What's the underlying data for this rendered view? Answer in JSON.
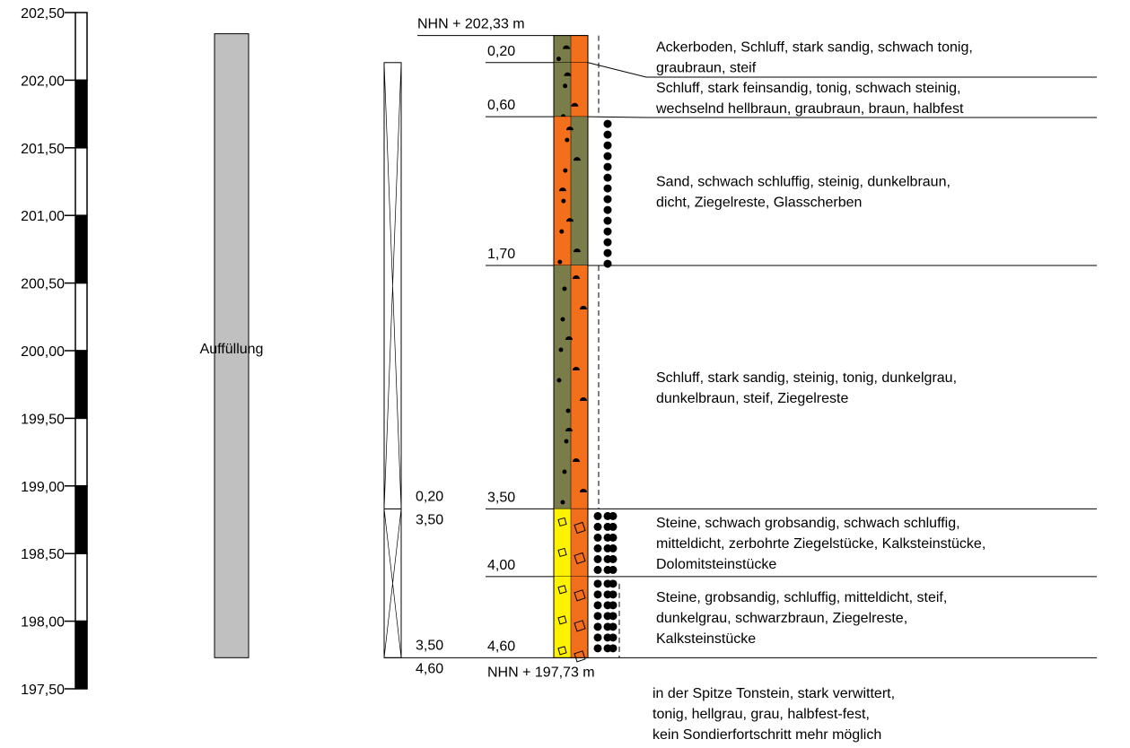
{
  "scale": {
    "ticks": [
      {
        "value": 202.5,
        "label": "202,50"
      },
      {
        "value": 202.0,
        "label": "202,00"
      },
      {
        "value": 201.5,
        "label": "201,50"
      },
      {
        "value": 201.0,
        "label": "201,00"
      },
      {
        "value": 200.5,
        "label": "200,50"
      },
      {
        "value": 200.0,
        "label": "200,00"
      },
      {
        "value": 199.5,
        "label": "199,50"
      },
      {
        "value": 199.0,
        "label": "199,00"
      },
      {
        "value": 198.5,
        "label": "198,50"
      },
      {
        "value": 198.0,
        "label": "198,00"
      },
      {
        "value": 197.5,
        "label": "197,50"
      }
    ]
  },
  "fill_label": "Auffüllung",
  "top_elevation": {
    "value": 202.33,
    "label": "NHN + 202,33 m"
  },
  "bottom_elevation": {
    "value": 197.73,
    "label": "NHN + 197,73 m"
  },
  "sample_sections": [
    {
      "top": {
        "value": 0.2,
        "label": "0,20"
      },
      "bottom": {
        "value": 3.5,
        "label": "3,50"
      }
    },
    {
      "top": {
        "value": 3.5,
        "label": "3,50"
      },
      "bottom": {
        "value": 4.6,
        "label": "4,60"
      }
    }
  ],
  "layers": [
    {
      "bottom": {
        "value": 0.2,
        "label": "0,20"
      },
      "description": [
        "Ackerboden, Schluff, stark sandig, schwach tonig,",
        "graubraun, steif"
      ]
    },
    {
      "bottom": {
        "value": 0.6,
        "label": "0,60"
      },
      "description": [
        "Schluff, stark feinsandig, tonig, schwach steinig,",
        "wechselnd hellbraun, graubraun, braun, halbfest"
      ]
    },
    {
      "bottom": {
        "value": 1.7,
        "label": "1,70"
      },
      "description": [
        "Sand, schwach schluffig, steinig, dunkelbraun,",
        "dicht, Ziegelreste, Glasscherben"
      ]
    },
    {
      "bottom": {
        "value": 3.5,
        "label": "3,50"
      },
      "description": [
        "Schluff, stark sandig, steinig, tonig, dunkelgrau,",
        "dunkelbraun, steif, Ziegelreste"
      ]
    },
    {
      "bottom": {
        "value": 4.0,
        "label": "4,00"
      },
      "description": [
        "Steine, schwach grobsandig, schwach schluffig,",
        "mitteldicht, zerbohrte Ziegelstücke, Kalksteinstücke,",
        "Dolomitsteinstücke"
      ]
    },
    {
      "bottom": {
        "value": 4.6,
        "label": "4,60"
      },
      "description": [
        "Steine, grobsandig, schluffig, mitteldicht, steif,",
        "dunkelgrau, schwarzbraun, Ziegelreste,",
        "Kalksteinstücke"
      ]
    }
  ],
  "note": [
    "in der Spitze Tonstein, stark verwittert,",
    "tonig, hellgrau, grau, halbfest-fest,",
    "kein Sondierfortschritt mehr möglich"
  ]
}
